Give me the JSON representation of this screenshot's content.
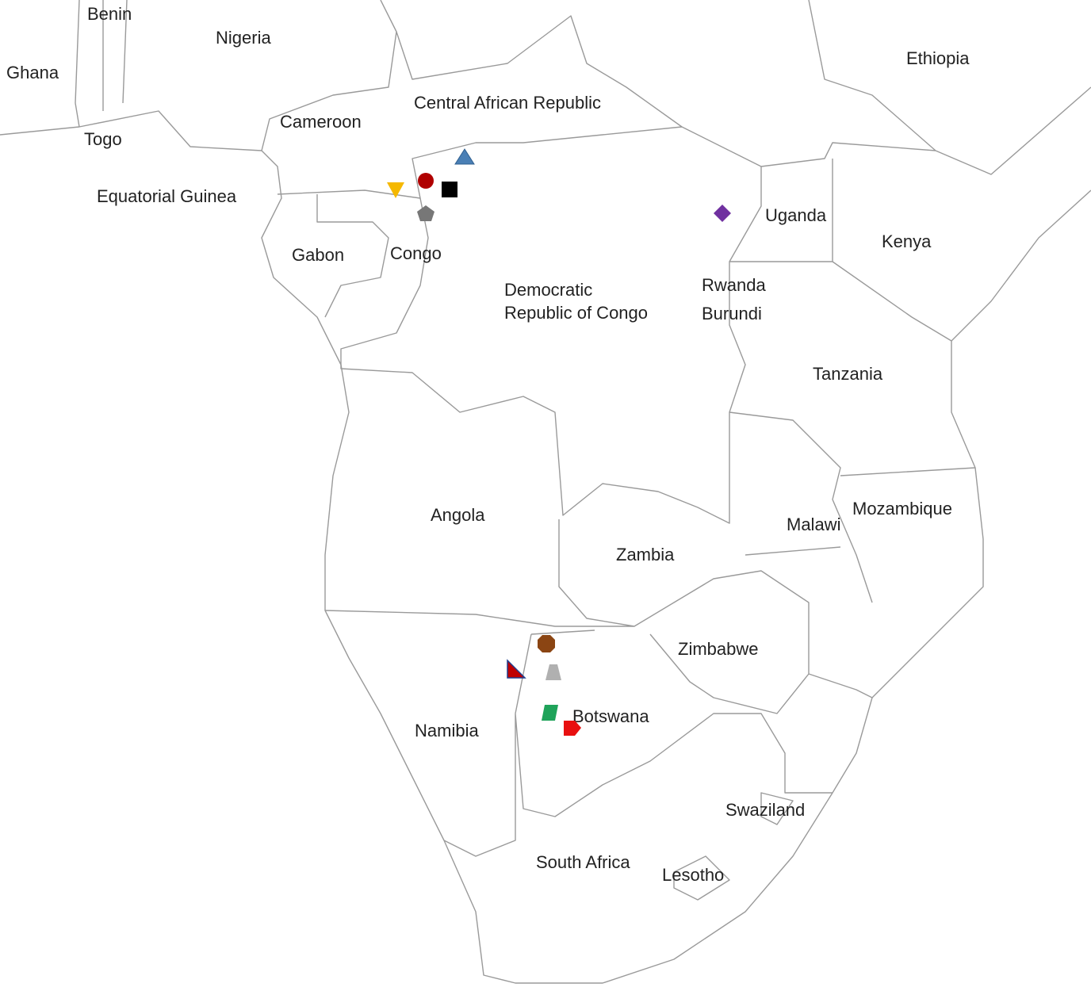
{
  "labels": {
    "benin": "Benin",
    "nigeria": "Nigeria",
    "ghana": "Ghana",
    "ethiopia": "Ethiopia",
    "car": "Central African Republic",
    "cameroon": "Cameroon",
    "togo": "Togo",
    "eq_guinea": "Equatorial Guinea",
    "uganda": "Uganda",
    "kenya": "Kenya",
    "gabon": "Gabon",
    "congo": "Congo",
    "drc": [
      "Democratic",
      "Republic of Congo"
    ],
    "rwanda": "Rwanda",
    "burundi": "Burundi",
    "tanzania": "Tanzania",
    "angola": "Angola",
    "malawi": "Malawi",
    "mozambique": "Mozambique",
    "zambia": "Zambia",
    "zimbabwe": "Zimbabwe",
    "namibia": "Namibia",
    "botswana": "Botswana",
    "swaziland": "Swaziland",
    "south_africa": "South Africa",
    "lesotho": "Lesotho"
  }
}
